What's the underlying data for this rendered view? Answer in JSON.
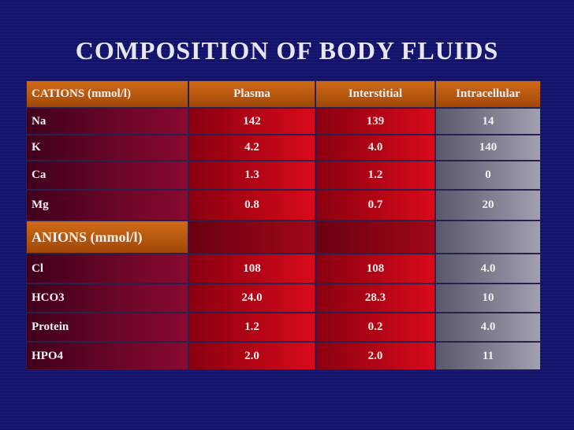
{
  "title": "COMPOSITION OF BODY FLUIDS",
  "table": {
    "header": [
      "CATIONS (mmol/l)",
      "Plasma",
      "Interstitial",
      "Intracellular"
    ],
    "cation_rows": [
      [
        "Na",
        "142",
        "139",
        "14"
      ],
      [
        "K",
        "4.2",
        "4.0",
        "140"
      ],
      [
        "Ca",
        "1.3",
        "1.2",
        "0"
      ],
      [
        "Mg",
        "0.8",
        "0.7",
        "20"
      ]
    ],
    "anion_header": "ANIONS (mmol/l)",
    "anion_rows": [
      [
        "Cl",
        "108",
        "108",
        "4.0"
      ],
      [
        "HCO3",
        "24.0",
        "28.3",
        "10"
      ],
      [
        "Protein",
        "1.2",
        "0.2",
        "4.0"
      ],
      [
        "HPO4",
        "2.0",
        "2.0",
        "11"
      ]
    ]
  }
}
